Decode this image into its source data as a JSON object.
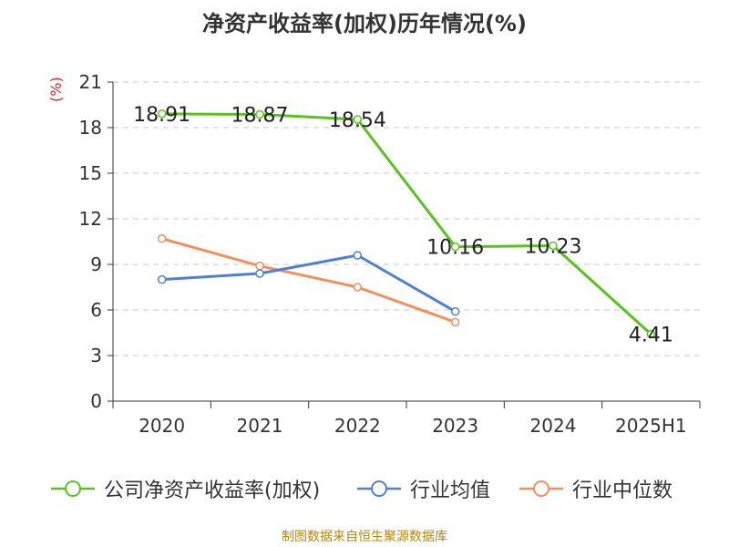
{
  "title": "净资产收益率(加权)历年情况(%)",
  "unit_label": "(%)",
  "source": "制图数据来自恒生聚源数据库",
  "chart_data": {
    "type": "line",
    "categories": [
      "2020",
      "2021",
      "2022",
      "2023",
      "2024",
      "2025H1"
    ],
    "ylim": [
      0,
      21
    ],
    "yticks": [
      "0",
      "3",
      "6",
      "9",
      "12",
      "15",
      "18",
      "21"
    ],
    "grid": true,
    "legend_position": "bottom",
    "series": [
      {
        "name": "公司净资产收益率(加权)",
        "color": "#5ac21e",
        "values": [
          18.91,
          18.87,
          18.54,
          10.16,
          10.23,
          4.41
        ],
        "labels": [
          "18.91",
          "18.87",
          "18.54",
          "10.16",
          "10.23",
          "4.41"
        ]
      },
      {
        "name": "行业均值",
        "color": "#4f7fd6",
        "values": [
          8.0,
          8.4,
          9.6,
          5.9,
          null,
          null
        ]
      },
      {
        "name": "行业中位数",
        "color": "#f58e5a",
        "values": [
          10.7,
          8.9,
          7.5,
          5.2,
          null,
          null
        ]
      }
    ]
  }
}
